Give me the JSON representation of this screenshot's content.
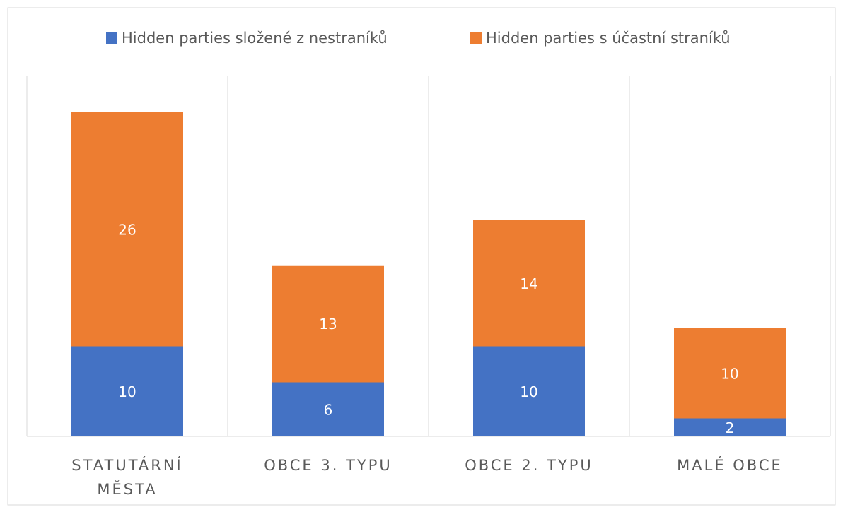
{
  "chart_data": {
    "type": "stacked_bar",
    "categories": [
      "STATUTÁRNÍ MĚSTA",
      "OBCE 3. TYPU",
      "OBCE 2. TYPU",
      "MALÉ OBCE"
    ],
    "series": [
      {
        "name": "Hidden parties složené z nestraníků",
        "color": "#4472c4",
        "values": [
          10,
          6,
          10,
          2
        ]
      },
      {
        "name": "Hidden parties s účastní straníků",
        "color": "#ed7d31",
        "values": [
          26,
          13,
          14,
          10
        ]
      }
    ],
    "ylim": [
      0,
      40
    ],
    "legend": "top"
  }
}
